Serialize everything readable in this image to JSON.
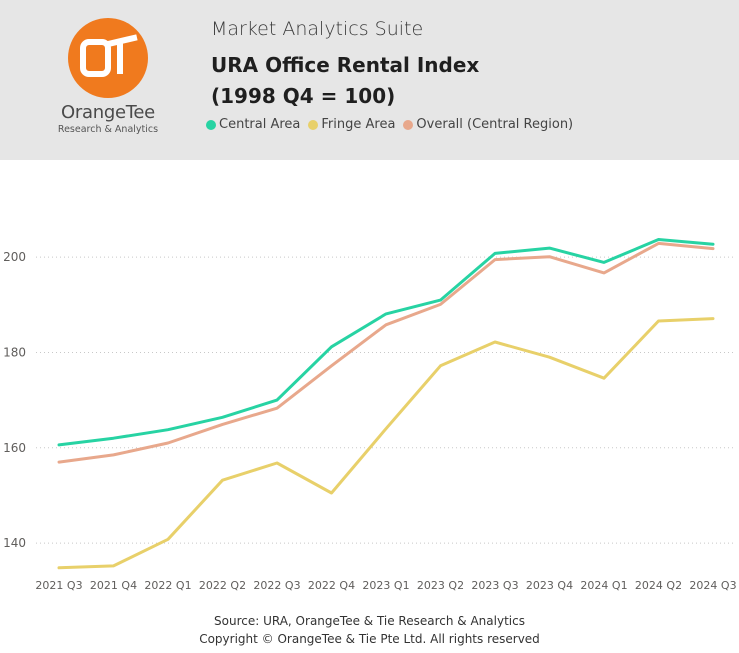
{
  "header": {
    "logo": {
      "brand": "OrangeTee",
      "tagline": "Research & Analytics"
    },
    "suite_label": "Market Analytics Suite",
    "title_line1": "URA Office Rental Index",
    "title_line2": "(1998 Q4 = 100)"
  },
  "colors": {
    "header_bg": "#e6e6e6",
    "brand_orange": "#f07a1e",
    "central": "#27d3a3",
    "fringe": "#e8d06a",
    "overall": "#e8a88c"
  },
  "chart_data": {
    "type": "line",
    "categories": [
      "2021 Q3",
      "2021 Q4",
      "2022 Q1",
      "2022 Q2",
      "2022 Q3",
      "2022 Q4",
      "2023 Q1",
      "2023 Q2",
      "2023 Q3",
      "2023 Q4",
      "2024 Q1",
      "2024 Q2",
      "2024 Q3"
    ],
    "series": [
      {
        "name": "Central Area",
        "color": "#27d3a3",
        "values": [
          160.6,
          162.0,
          163.8,
          166.4,
          170.0,
          181.2,
          188.1,
          191.0,
          200.8,
          201.9,
          198.9,
          203.7,
          202.7
        ]
      },
      {
        "name": "Fringe Area",
        "color": "#e8d06a",
        "values": [
          134.8,
          135.2,
          140.8,
          153.2,
          156.8,
          150.5,
          164.0,
          177.2,
          182.2,
          179.0,
          174.6,
          186.6,
          187.1
        ]
      },
      {
        "name": "Overall (Central Region)",
        "color": "#e8a88c",
        "values": [
          157.0,
          158.5,
          161.0,
          164.9,
          168.3,
          177.2,
          185.8,
          190.1,
          199.5,
          200.1,
          196.7,
          202.9,
          201.8
        ]
      }
    ],
    "yticks": [
      140,
      160,
      180,
      200
    ],
    "ylim": [
      131.2,
      212.0
    ],
    "grid": true,
    "legend_position": "top-left"
  },
  "footer": {
    "source": "Source: URA, OrangeTee & Tie Research & Analytics",
    "copyright": "Copyright © OrangeTee & Tie Pte Ltd. All rights reserved"
  }
}
